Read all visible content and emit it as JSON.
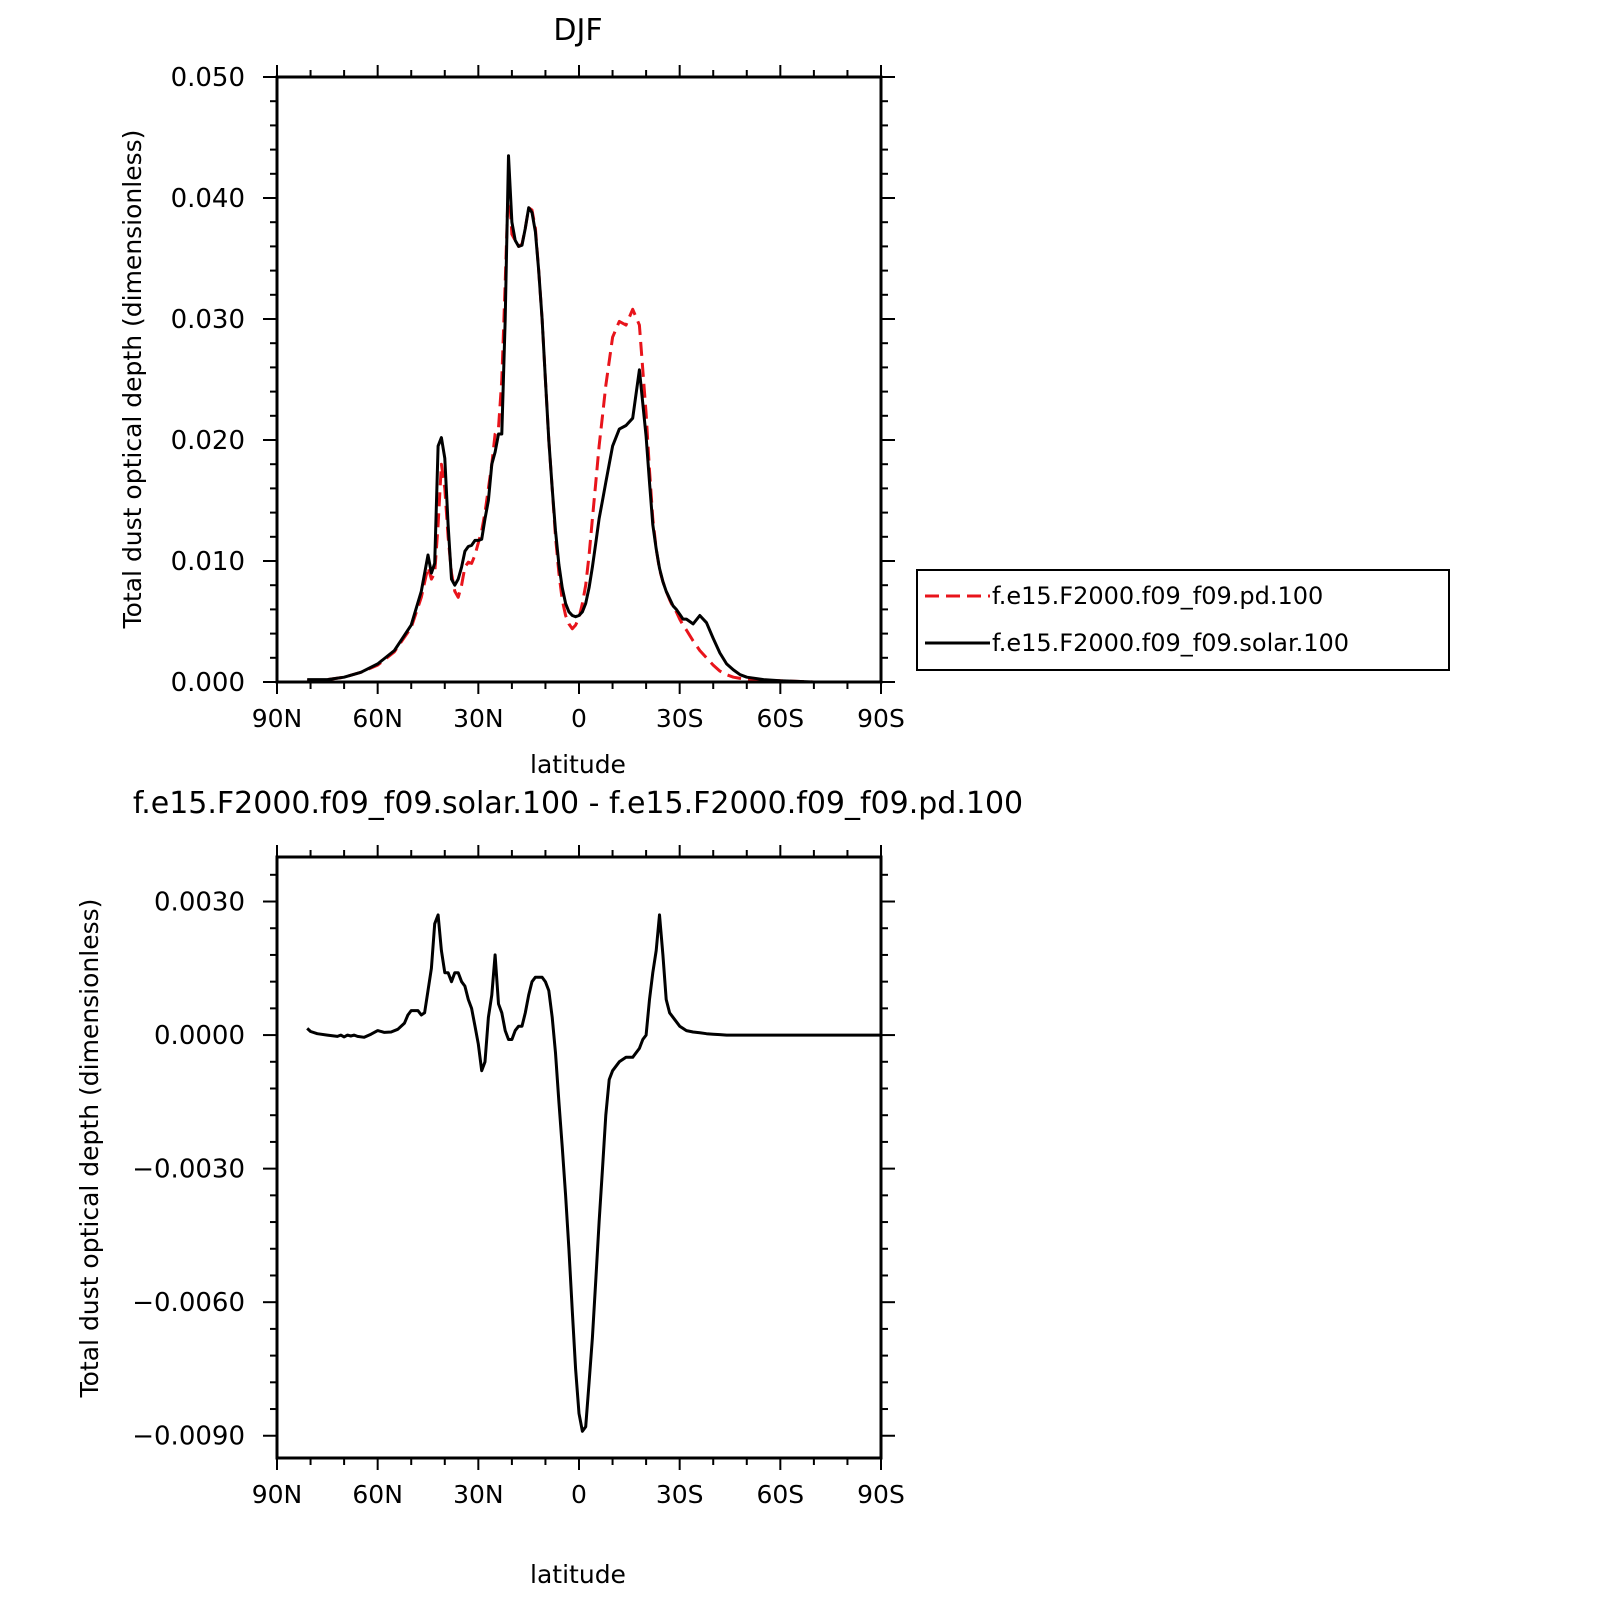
{
  "chart_data": [
    {
      "type": "line",
      "title": "DJF",
      "xlabel": "latitude",
      "ylabel": "Total dust optical depth (dimensionless)",
      "x_tick_values": [
        90,
        60,
        30,
        0,
        -30,
        -60,
        -90
      ],
      "x_tick_labels": [
        "90N",
        "60N",
        "30N",
        "0",
        "30S",
        "60S",
        "90S"
      ],
      "xlim": [
        90,
        -90
      ],
      "ylim": [
        0.0,
        0.05
      ],
      "y_tick_values": [
        0.0,
        0.01,
        0.02,
        0.03,
        0.04,
        0.05
      ],
      "y_tick_labels": [
        "0.000",
        "0.010",
        "0.020",
        "0.030",
        "0.040",
        "0.050"
      ],
      "legend": "right",
      "series": [
        {
          "name": "f.e15.F2000.f09_f09.pd.100",
          "color": "#e8141b",
          "dash": "dashed",
          "x": [
            81,
            75,
            70,
            65,
            60,
            55,
            50,
            47,
            45,
            44,
            43,
            42,
            41,
            40,
            39,
            38,
            37,
            36,
            35,
            34,
            33,
            32,
            31,
            30,
            29,
            28,
            27,
            26,
            25,
            24,
            23,
            22,
            21,
            20,
            19,
            18,
            17,
            16,
            15,
            14,
            13,
            12,
            11,
            10,
            9,
            8,
            7,
            6,
            5,
            4,
            3,
            2,
            1,
            0,
            -1,
            -2,
            -3,
            -4,
            -5,
            -6,
            -7,
            -8,
            -9,
            -10,
            -12,
            -14,
            -16,
            -18,
            -20,
            -21,
            -22,
            -23,
            -24,
            -25,
            -26,
            -27,
            -28,
            -29,
            -30,
            -31,
            -32,
            -34,
            -36,
            -38,
            -40,
            -42,
            -44,
            -46,
            -48,
            -50,
            -55,
            -60,
            -70,
            -80,
            -90
          ],
          "y": [
            0.0001,
            0.0002,
            0.0004,
            0.0008,
            0.0014,
            0.0025,
            0.0045,
            0.007,
            0.0095,
            0.0085,
            0.009,
            0.013,
            0.018,
            0.016,
            0.012,
            0.009,
            0.0075,
            0.007,
            0.008,
            0.0095,
            0.0099,
            0.0098,
            0.0105,
            0.0115,
            0.0125,
            0.014,
            0.016,
            0.018,
            0.0205,
            0.021,
            0.025,
            0.033,
            0.0415,
            0.037,
            0.0365,
            0.036,
            0.0362,
            0.0375,
            0.0392,
            0.039,
            0.0375,
            0.034,
            0.03,
            0.025,
            0.02,
            0.016,
            0.012,
            0.009,
            0.0068,
            0.0055,
            0.0048,
            0.0044,
            0.0047,
            0.0053,
            0.0065,
            0.008,
            0.0105,
            0.0135,
            0.0165,
            0.0195,
            0.022,
            0.0245,
            0.0265,
            0.0285,
            0.0298,
            0.0295,
            0.0308,
            0.0295,
            0.0222,
            0.0175,
            0.0135,
            0.011,
            0.0093,
            0.0083,
            0.0075,
            0.0068,
            0.0062,
            0.0058,
            0.0052,
            0.0047,
            0.0043,
            0.0034,
            0.0026,
            0.002,
            0.0014,
            0.0009,
            0.0006,
            0.0004,
            0.0003,
            0.0002,
            0.0001,
            0.0001,
            0.0,
            0.0,
            0.0
          ]
        },
        {
          "name": "f.e15.F2000.f09_f09.solar.100",
          "color": "#000000",
          "dash": "solid",
          "x": [
            81,
            75,
            70,
            65,
            60,
            55,
            50,
            47,
            45,
            44,
            43,
            42,
            41,
            40,
            39,
            38,
            37,
            36,
            35,
            34,
            33,
            32,
            31,
            30,
            29,
            28,
            27,
            26,
            25,
            24,
            23,
            22,
            21,
            20,
            19,
            18,
            17,
            16,
            15,
            14,
            13,
            12,
            11,
            10,
            9,
            8,
            7,
            6,
            5,
            4,
            3,
            2,
            1,
            0,
            -1,
            -2,
            -3,
            -4,
            -5,
            -6,
            -7,
            -8,
            -9,
            -10,
            -12,
            -14,
            -16,
            -18,
            -20,
            -21,
            -22,
            -23,
            -24,
            -25,
            -26,
            -27,
            -28,
            -29,
            -30,
            -31,
            -32,
            -34,
            -36,
            -38,
            -40,
            -42,
            -44,
            -46,
            -48,
            -50,
            -55,
            -60,
            -70,
            -80,
            -90
          ],
          "y": [
            0.0002,
            0.0002,
            0.0004,
            0.0008,
            0.0015,
            0.0026,
            0.0047,
            0.0075,
            0.0105,
            0.009,
            0.0098,
            0.0195,
            0.0202,
            0.0185,
            0.013,
            0.0085,
            0.008,
            0.0085,
            0.0095,
            0.0108,
            0.0112,
            0.0113,
            0.0117,
            0.0117,
            0.0118,
            0.0135,
            0.015,
            0.018,
            0.019,
            0.0205,
            0.0205,
            0.03,
            0.0435,
            0.038,
            0.0365,
            0.036,
            0.0361,
            0.0375,
            0.0392,
            0.0388,
            0.0372,
            0.034,
            0.03,
            0.025,
            0.02,
            0.016,
            0.0125,
            0.0097,
            0.0078,
            0.0065,
            0.0058,
            0.0055,
            0.0054,
            0.0055,
            0.0058,
            0.0065,
            0.0078,
            0.0095,
            0.0115,
            0.0135,
            0.015,
            0.0165,
            0.018,
            0.0195,
            0.0209,
            0.0212,
            0.0218,
            0.0258,
            0.0203,
            0.0165,
            0.013,
            0.011,
            0.0094,
            0.0083,
            0.0075,
            0.0069,
            0.0063,
            0.006,
            0.0056,
            0.0052,
            0.0052,
            0.0048,
            0.0055,
            0.0049,
            0.0036,
            0.0024,
            0.0015,
            0.001,
            0.0006,
            0.0004,
            0.0002,
            0.0001,
            0.0,
            0.0,
            0.0
          ]
        }
      ]
    },
    {
      "type": "line",
      "title": "f.e15.F2000.f09_f09.solar.100 - f.e15.F2000.f09_f09.pd.100",
      "xlabel": "latitude",
      "ylabel": "Total dust optical depth (dimensionless)",
      "x_tick_values": [
        90,
        60,
        30,
        0,
        -30,
        -60,
        -90
      ],
      "x_tick_labels": [
        "90N",
        "60N",
        "30N",
        "0",
        "30S",
        "60S",
        "90S"
      ],
      "xlim": [
        90,
        -90
      ],
      "ylim": [
        -0.0095,
        0.004
      ],
      "y_tick_values": [
        0.003,
        0.0,
        -0.003,
        -0.006,
        -0.009
      ],
      "y_tick_labels": [
        "0.0030",
        "0.0000",
        "−0.0030",
        "−0.0060",
        "−0.0090"
      ],
      "series": [
        {
          "name": "",
          "color": "#000000",
          "dash": "solid",
          "x": [
            81,
            80,
            78,
            75,
            72,
            71,
            70,
            69,
            68,
            67,
            66,
            64,
            62,
            60,
            58,
            56,
            54,
            52,
            51,
            50,
            48,
            47,
            46,
            45,
            44,
            43,
            42,
            41,
            40,
            39,
            38,
            37,
            36,
            35,
            34,
            33,
            32,
            31,
            30,
            29,
            28,
            27,
            26,
            25,
            24,
            23,
            22,
            21,
            20,
            19,
            18,
            17,
            16,
            15,
            14,
            13,
            12,
            11,
            10,
            9,
            8,
            7,
            6,
            5,
            4,
            3,
            2,
            1,
            0,
            -1,
            -2,
            -3,
            -4,
            -5,
            -6,
            -7,
            -8,
            -9,
            -10,
            -12,
            -14,
            -16,
            -18,
            -19,
            -20,
            -21,
            -22,
            -23,
            -24,
            -25,
            -26,
            -27,
            -28,
            -29,
            -30,
            -31,
            -32,
            -34,
            -36,
            -38,
            -40,
            -42,
            -44,
            -46,
            -48,
            -50,
            -55,
            -60,
            -65,
            -70,
            -80,
            -90
          ],
          "y": [
            0.00015,
            8e-05,
            3e-05,
            0.0,
            -3e-05,
            0.0,
            -4e-05,
            0.0,
            -2e-05,
            0.0,
            -3e-05,
            -5e-05,
            2e-05,
            0.0001,
            6e-05,
            7e-05,
            0.00013,
            0.00027,
            0.00045,
            0.00055,
            0.00055,
            0.00045,
            0.0005,
            0.001,
            0.0015,
            0.0025,
            0.0027,
            0.0019,
            0.0014,
            0.0014,
            0.0012,
            0.0014,
            0.0014,
            0.0012,
            0.0011,
            0.0008,
            0.0006,
            0.0002,
            -0.0002,
            -0.0008,
            -0.0006,
            0.0004,
            0.0009,
            0.0018,
            0.0007,
            0.0005,
            0.0001,
            -0.0001,
            -0.0001,
            0.0001,
            0.0002,
            0.0002,
            0.0005,
            0.0009,
            0.0012,
            0.0013,
            0.0013,
            0.0013,
            0.0012,
            0.001,
            0.0004,
            -0.0004,
            -0.0015,
            -0.0025,
            -0.0036,
            -0.0048,
            -0.0062,
            -0.0075,
            -0.0085,
            -0.0089,
            -0.0088,
            -0.0078,
            -0.0068,
            -0.0055,
            -0.0042,
            -0.003,
            -0.0018,
            -0.001,
            -0.0008,
            -0.0006,
            -0.0005,
            -0.0005,
            -0.0003,
            -0.0001,
            0.0,
            0.0008,
            0.0014,
            0.0019,
            0.0027,
            0.0018,
            0.0008,
            0.0005,
            0.0004,
            0.0003,
            0.0002,
            0.00015,
            0.0001,
            7e-05,
            5e-05,
            3e-05,
            2e-05,
            1e-05,
            0.0,
            0.0,
            0.0,
            0.0,
            0.0,
            0.0,
            0.0,
            0.0,
            0.0,
            0.0
          ]
        }
      ]
    }
  ]
}
